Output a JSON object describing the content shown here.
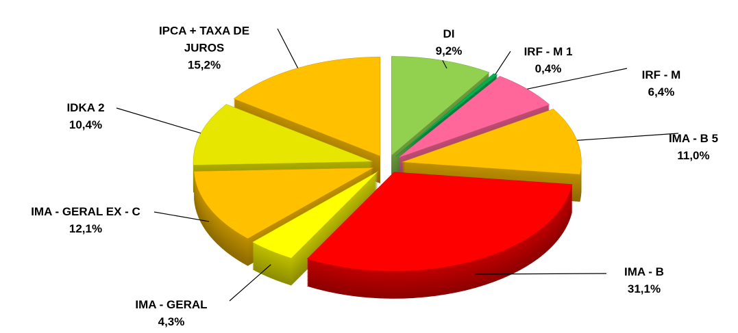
{
  "chart_data": {
    "type": "pie3d",
    "categories": [
      "DI",
      "IRF - M 1",
      "IRF - M",
      "IMA - B 5",
      "IMA - B",
      "IMA - GERAL",
      "IMA - GERAL EX - C",
      "IDKA 2",
      "IPCA + TAXA DE JUROS"
    ],
    "values": [
      9.2,
      0.4,
      6.4,
      11.0,
      31.1,
      4.3,
      12.1,
      10.4,
      15.2
    ],
    "value_labels": [
      "9,2%",
      "0,4%",
      "6,4%",
      "11,0%",
      "31,1%",
      "4,3%",
      "12,1%",
      "10,4%",
      "15,2%"
    ],
    "colors": [
      "#92d050",
      "#00b050",
      "#ff6699",
      "#ffc000",
      "#ff0000",
      "#ffff00",
      "#ffc000",
      "#e6e600",
      "#ffc000"
    ]
  }
}
